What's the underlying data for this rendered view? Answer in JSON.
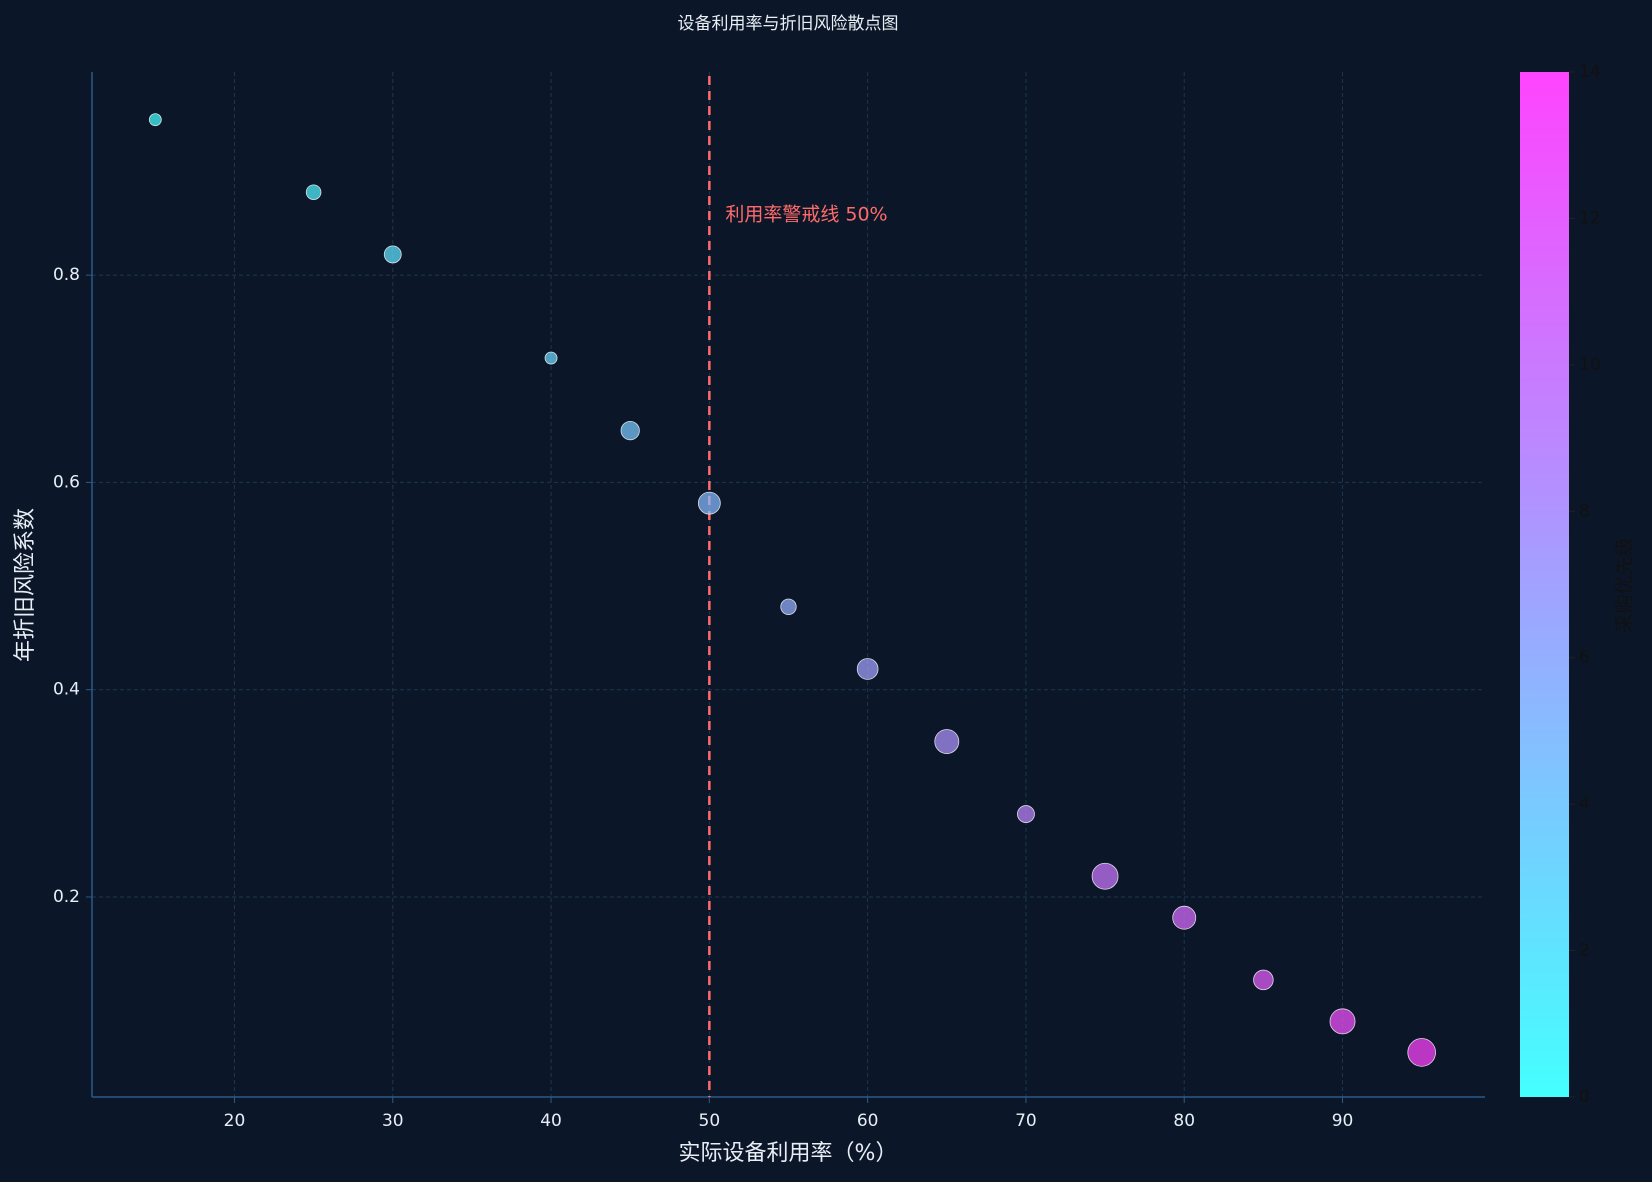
{
  "chart_data": {
    "type": "scatter",
    "title": "设备利用率与折旧风险散点图",
    "x_label": "实际设备利用率（%）",
    "y_label": "年折旧风险系数",
    "x": [
      15,
      25,
      30,
      40,
      45,
      50,
      55,
      60,
      65,
      70,
      75,
      80,
      85,
      90,
      95
    ],
    "values": [
      0.95,
      0.88,
      0.82,
      0.72,
      0.65,
      0.58,
      0.48,
      0.42,
      0.35,
      0.28,
      0.22,
      0.18,
      0.12,
      0.08,
      0.05
    ],
    "sizes": [
      30,
      45,
      60,
      30,
      70,
      100,
      50,
      90,
      120,
      60,
      140,
      110,
      80,
      130,
      160
    ],
    "priority": [
      0,
      1,
      2,
      3,
      4,
      5,
      6,
      7,
      8,
      9,
      10,
      11,
      12,
      13,
      14
    ],
    "xlim": [
      11,
      99
    ],
    "ylim": [
      0.007,
      0.996
    ],
    "xticks": [
      20,
      30,
      40,
      50,
      60,
      70,
      80,
      90
    ],
    "yticks": [
      0.2,
      0.4,
      0.6,
      0.8
    ],
    "grid": true,
    "threshold": {
      "value": 50,
      "label": "利用率警戒线 50%",
      "color": "#ff6b6b"
    },
    "colorbar": {
      "label": "采购优先级",
      "clim": [
        0,
        14
      ],
      "ticks": [
        0,
        2,
        4,
        6,
        8,
        10,
        12,
        14
      ],
      "colormap": [
        "#44ffff",
        "#ff44ff"
      ]
    }
  }
}
